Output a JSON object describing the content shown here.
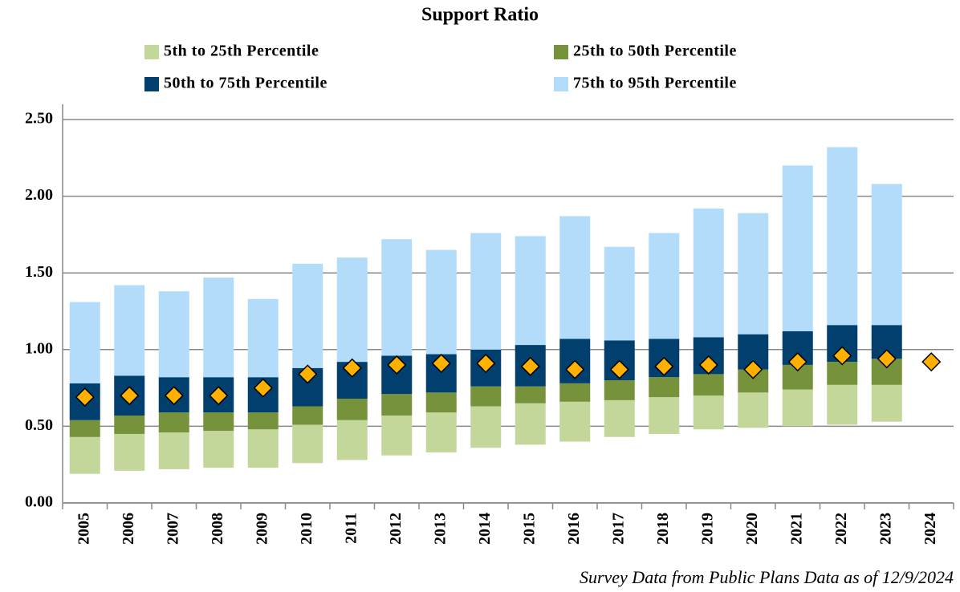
{
  "chart_data": {
    "type": "bar",
    "title": "Support Ratio",
    "footnote": "Survey Data from Public Plans Data as of 12/9/2024",
    "categories": [
      "2005",
      "2006",
      "2007",
      "2008",
      "2009",
      "2010",
      "2011",
      "2012",
      "2013",
      "2014",
      "2015",
      "2016",
      "2017",
      "2018",
      "2019",
      "2020",
      "2021",
      "2022",
      "2023",
      "2024"
    ],
    "base": {
      "color": "none",
      "values": [
        0.19,
        0.21,
        0.22,
        0.23,
        0.23,
        0.26,
        0.28,
        0.31,
        0.33,
        0.36,
        0.38,
        0.4,
        0.43,
        0.45,
        0.48,
        0.49,
        0.5,
        0.51,
        0.53,
        null
      ]
    },
    "series": [
      {
        "name": "5th to 25th Percentile",
        "color": "#c4d79b",
        "values": [
          0.24,
          0.24,
          0.24,
          0.24,
          0.25,
          0.25,
          0.26,
          0.26,
          0.26,
          0.27,
          0.27,
          0.26,
          0.24,
          0.24,
          0.22,
          0.23,
          0.24,
          0.26,
          0.24,
          null
        ]
      },
      {
        "name": "25th to 50th Percentile",
        "color": "#76933c",
        "values": [
          0.11,
          0.12,
          0.13,
          0.12,
          0.11,
          0.12,
          0.14,
          0.14,
          0.13,
          0.13,
          0.11,
          0.12,
          0.13,
          0.13,
          0.14,
          0.15,
          0.16,
          0.15,
          0.17,
          null
        ]
      },
      {
        "name": "50th to 75th Percentile",
        "color": "#003f6e",
        "values": [
          0.24,
          0.26,
          0.23,
          0.23,
          0.23,
          0.25,
          0.24,
          0.25,
          0.25,
          0.24,
          0.27,
          0.29,
          0.26,
          0.25,
          0.24,
          0.23,
          0.22,
          0.24,
          0.22,
          null
        ]
      },
      {
        "name": "75th to 95th Percentile",
        "color": "#b3dcfb",
        "values": [
          0.53,
          0.59,
          0.56,
          0.65,
          0.51,
          0.68,
          0.68,
          0.76,
          0.68,
          0.76,
          0.71,
          0.8,
          0.61,
          0.69,
          0.84,
          0.79,
          1.08,
          1.16,
          0.92,
          null
        ]
      }
    ],
    "median": {
      "color": "#ffb000",
      "marker": "diamond",
      "values": [
        0.69,
        0.7,
        0.7,
        0.7,
        0.75,
        0.84,
        0.88,
        0.9,
        0.91,
        0.91,
        0.89,
        0.87,
        0.87,
        0.89,
        0.9,
        0.87,
        0.92,
        0.96,
        0.94,
        0.92
      ]
    },
    "ylim": [
      0,
      2.5
    ],
    "yticks": [
      {
        "value": 0,
        "label": "0.00"
      },
      {
        "value": 0.5,
        "label": "0.50"
      },
      {
        "value": 1,
        "label": "1.00"
      },
      {
        "value": 1.5,
        "label": "1.50"
      },
      {
        "value": 2,
        "label": "2.00"
      },
      {
        "value": 2.5,
        "label": "2.50"
      }
    ],
    "grid": true
  }
}
